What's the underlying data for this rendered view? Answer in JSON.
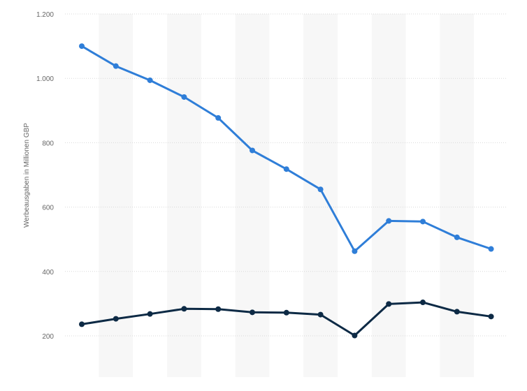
{
  "chart_data": {
    "type": "line",
    "title": "",
    "xlabel": "",
    "ylabel": "Werbeausgaben in Millionen GBP",
    "ylim": [
      200,
      1200
    ],
    "y_ticks": [
      {
        "value": 200,
        "label": "200"
      },
      {
        "value": 400,
        "label": "400"
      },
      {
        "value": 600,
        "label": "600"
      },
      {
        "value": 800,
        "label": "800"
      },
      {
        "value": 1000,
        "label": "1.000"
      },
      {
        "value": 1200,
        "label": "1.200"
      }
    ],
    "grid": true,
    "x_count": 13,
    "series": [
      {
        "values": [
          1100,
          1038,
          994,
          942,
          877,
          776,
          718,
          655,
          463,
          557,
          555,
          506,
          470
        ],
        "color": "#2f7ed8"
      },
      {
        "values": [
          236,
          253,
          268,
          284,
          283,
          273,
          272,
          266,
          201,
          299,
          304,
          275,
          260
        ],
        "color": "#0d2a45"
      }
    ]
  }
}
